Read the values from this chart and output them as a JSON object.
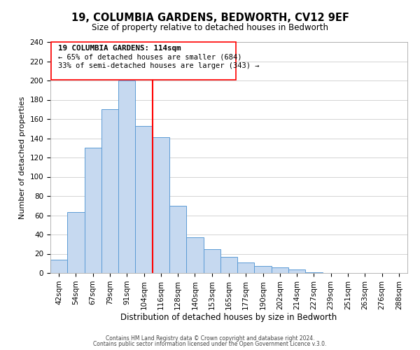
{
  "title": "19, COLUMBIA GARDENS, BEDWORTH, CV12 9EF",
  "subtitle": "Size of property relative to detached houses in Bedworth",
  "xlabel": "Distribution of detached houses by size in Bedworth",
  "ylabel": "Number of detached properties",
  "bar_labels": [
    "42sqm",
    "54sqm",
    "67sqm",
    "79sqm",
    "91sqm",
    "104sqm",
    "116sqm",
    "128sqm",
    "140sqm",
    "153sqm",
    "165sqm",
    "177sqm",
    "190sqm",
    "202sqm",
    "214sqm",
    "227sqm",
    "239sqm",
    "251sqm",
    "263sqm",
    "276sqm",
    "288sqm"
  ],
  "bar_values": [
    14,
    63,
    130,
    170,
    200,
    153,
    141,
    70,
    37,
    25,
    17,
    11,
    7,
    6,
    4,
    1,
    0,
    0,
    0,
    0,
    0
  ],
  "bar_color": "#c6d9f0",
  "bar_edge_color": "#5b9bd5",
  "vline_color": "red",
  "vline_x": 5.5,
  "ylim": [
    0,
    240
  ],
  "yticks": [
    0,
    20,
    40,
    60,
    80,
    100,
    120,
    140,
    160,
    180,
    200,
    220,
    240
  ],
  "annotation_title": "19 COLUMBIA GARDENS: 114sqm",
  "annotation_line1": "← 65% of detached houses are smaller (684)",
  "annotation_line2": "33% of semi-detached houses are larger (343) →",
  "footer1": "Contains HM Land Registry data © Crown copyright and database right 2024.",
  "footer2": "Contains public sector information licensed under the Open Government Licence v.3.0.",
  "background_color": "#ffffff",
  "grid_color": "#cccccc",
  "title_fontsize": 10.5,
  "subtitle_fontsize": 8.5,
  "xlabel_fontsize": 8.5,
  "ylabel_fontsize": 8.0,
  "tick_fontsize": 7.5,
  "footer_fontsize": 5.5
}
